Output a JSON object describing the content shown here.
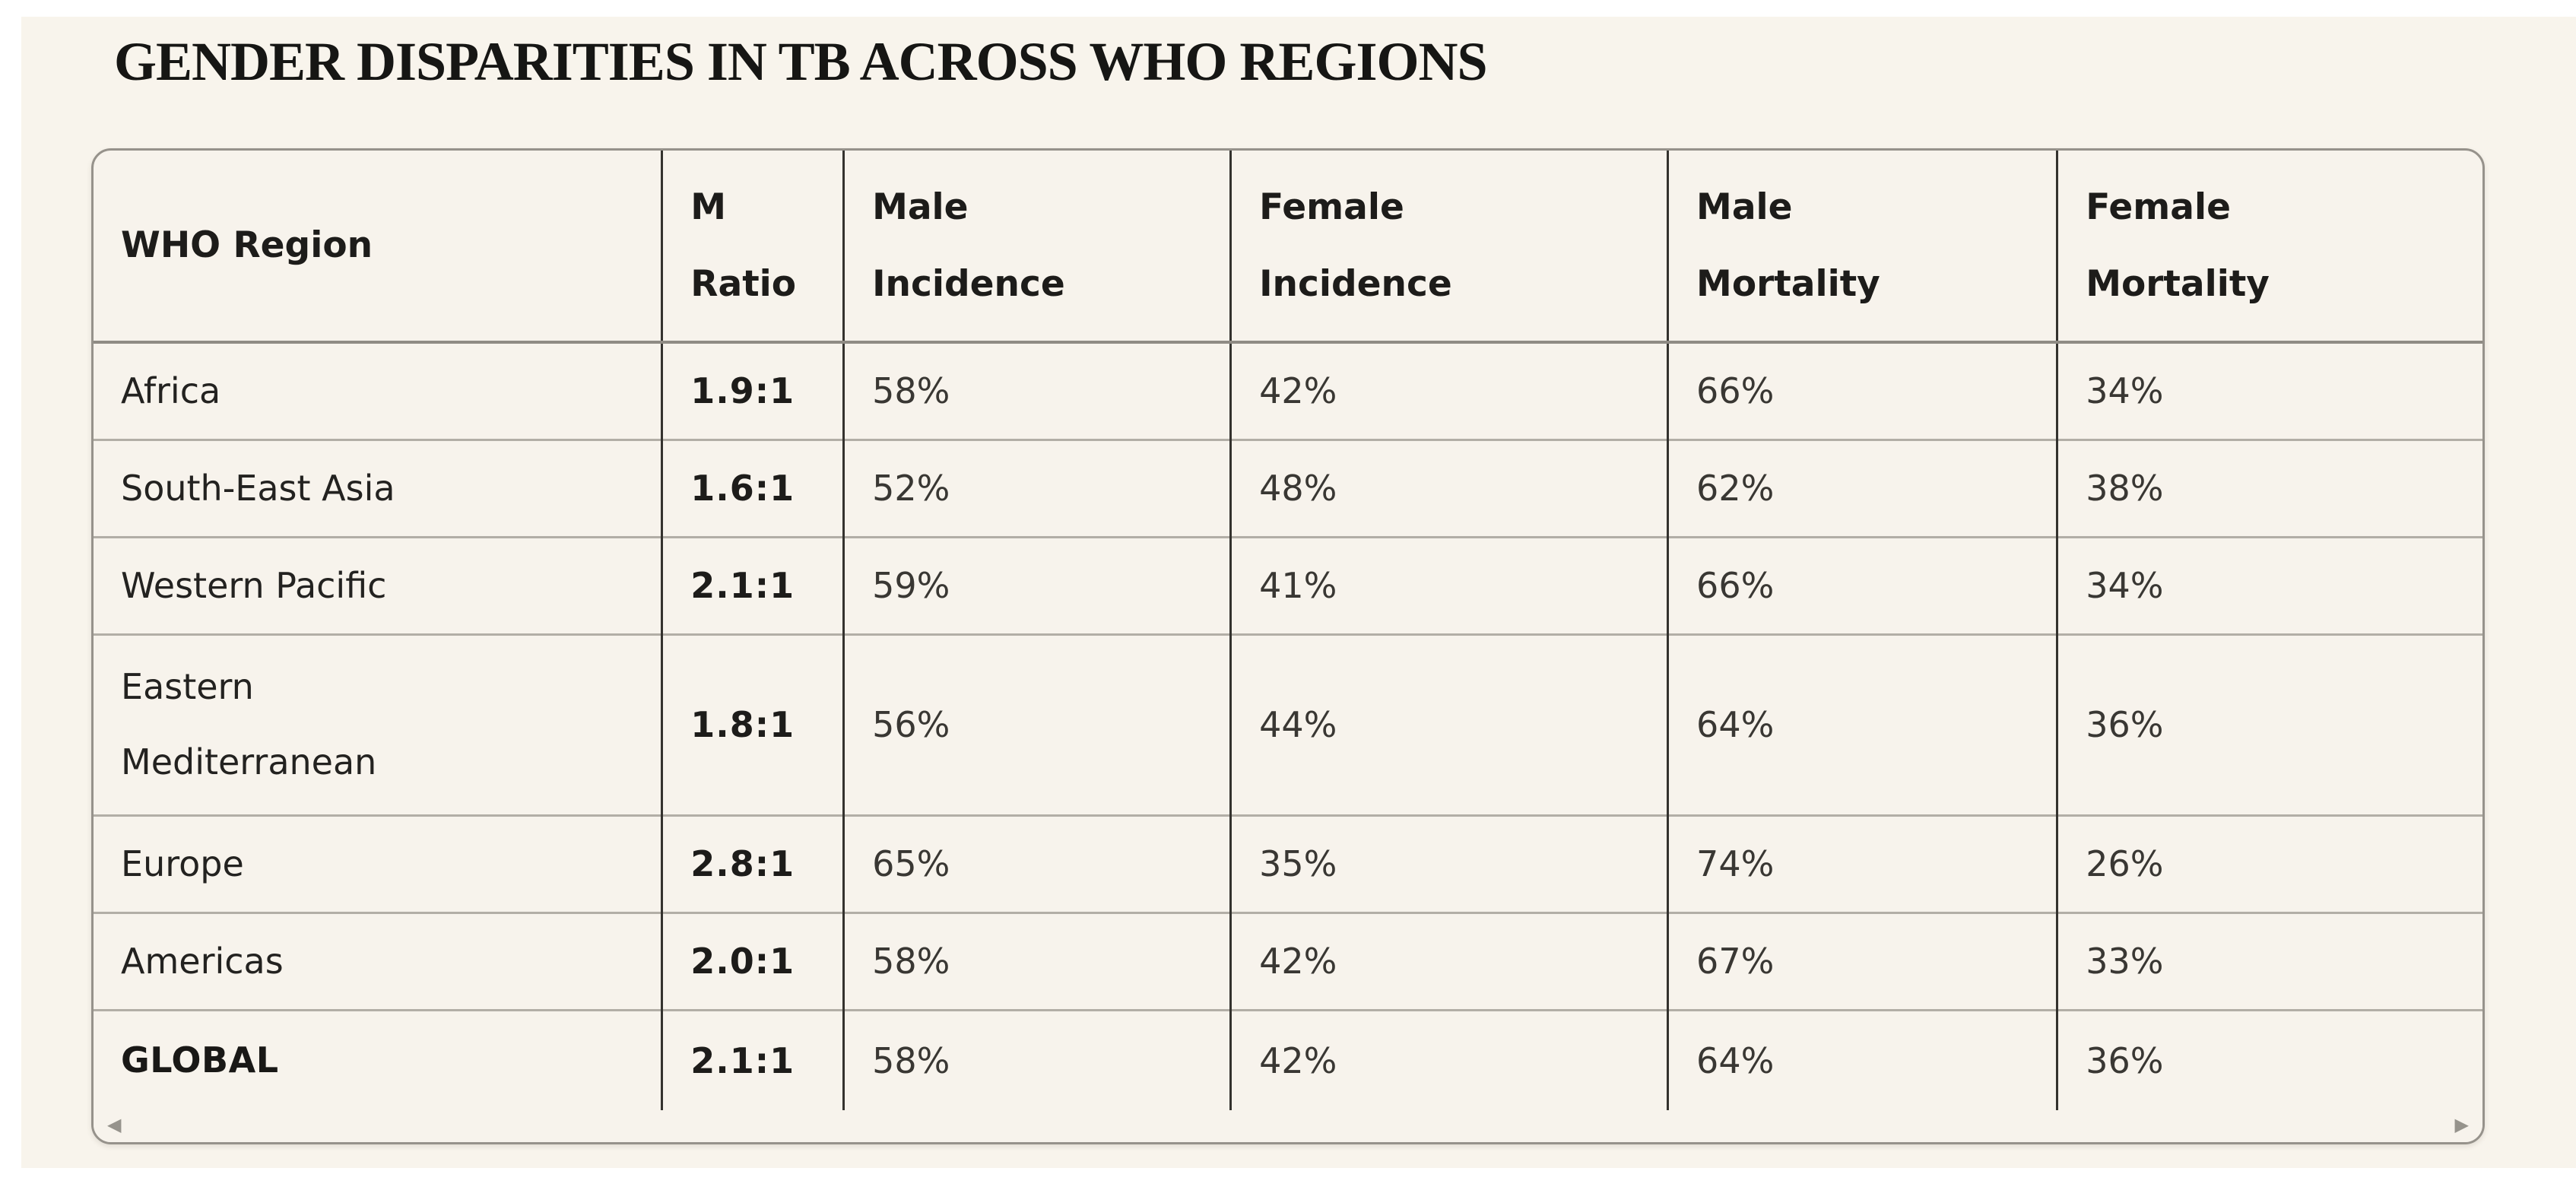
{
  "page": {
    "title": "GENDER DISPARITIES IN TB ACROSS WHO REGIONS"
  },
  "colors": {
    "page_bg": "#ffffff",
    "panel_bg": "#f8f4ec",
    "container_border": "#96928b",
    "column_divider": "#34322e",
    "row_divider": "#b2aea6",
    "text": "#232220"
  },
  "icons": {
    "scroll_left": "◀",
    "scroll_right": "▶"
  },
  "table": {
    "header": {
      "region": [
        "WHO Region"
      ],
      "ratio": [
        "M",
        "Ratio"
      ],
      "male_incidence": [
        "Male",
        "Incidence"
      ],
      "female_incidence": [
        "Female",
        "Incidence"
      ],
      "male_mortality": [
        "Male",
        "Mortality"
      ],
      "female_mortality": [
        "Female",
        "Mortality"
      ]
    },
    "rows": [
      {
        "region": [
          "Africa"
        ],
        "ratio": "1.9:1",
        "male_incidence": "58%",
        "female_incidence": "42%",
        "male_mortality": "66%",
        "female_mortality": "34%"
      },
      {
        "region": [
          "South-East Asia"
        ],
        "ratio": "1.6:1",
        "male_incidence": "52%",
        "female_incidence": "48%",
        "male_mortality": "62%",
        "female_mortality": "38%"
      },
      {
        "region": [
          "Western Pacific"
        ],
        "ratio": "2.1:1",
        "male_incidence": "59%",
        "female_incidence": "41%",
        "male_mortality": "66%",
        "female_mortality": "34%"
      },
      {
        "region": [
          "Eastern",
          "Mediterranean"
        ],
        "ratio": "1.8:1",
        "male_incidence": "56%",
        "female_incidence": "44%",
        "male_mortality": "64%",
        "female_mortality": "36%"
      },
      {
        "region": [
          "Europe"
        ],
        "ratio": "2.8:1",
        "male_incidence": "65%",
        "female_incidence": "35%",
        "male_mortality": "74%",
        "female_mortality": "26%"
      },
      {
        "region": [
          "Americas"
        ],
        "ratio": "2.0:1",
        "male_incidence": "58%",
        "female_incidence": "42%",
        "male_mortality": "67%",
        "female_mortality": "33%"
      },
      {
        "region": [
          "GLOBAL"
        ],
        "ratio": "2.1:1",
        "male_incidence": "58%",
        "female_incidence": "42%",
        "male_mortality": "64%",
        "female_mortality": "36%"
      }
    ]
  }
}
